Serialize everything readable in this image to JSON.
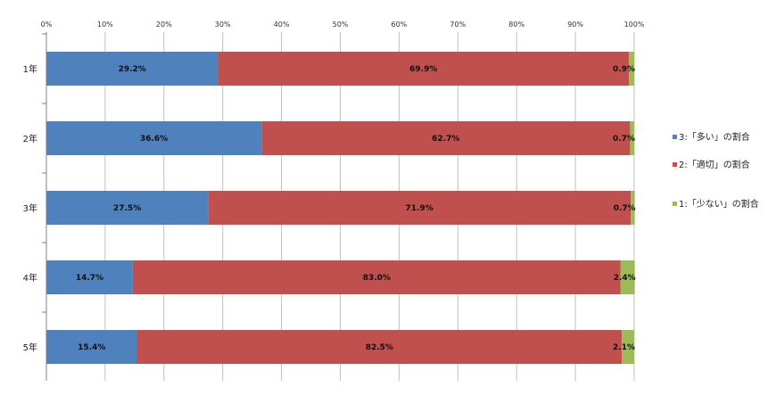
{
  "chart_data": {
    "type": "bar",
    "orientation": "horizontal",
    "stacked": true,
    "categories": [
      "1年",
      "2年",
      "3年",
      "4年",
      "5年"
    ],
    "series": [
      {
        "name": "3:「多い」の割合",
        "color": "#4f81bd",
        "values": [
          29.2,
          36.6,
          27.5,
          14.7,
          15.4
        ],
        "labels": [
          "29.2%",
          "36.6%",
          "27.5%",
          "14.7%",
          "15.4%"
        ]
      },
      {
        "name": "2:「適切」の割合",
        "color": "#c0504d",
        "values": [
          69.9,
          62.7,
          71.9,
          83.0,
          82.5
        ],
        "labels": [
          "69.9%",
          "62.7%",
          "71.9%",
          "83.0%",
          "82.5%"
        ]
      },
      {
        "name": "1:「少ない」の割合",
        "color": "#9bbb59",
        "values": [
          0.9,
          0.7,
          0.7,
          2.4,
          2.1
        ],
        "labels": [
          "0.9%",
          "0.7%",
          "0.7%",
          "2.4%",
          "2.1%"
        ]
      }
    ],
    "xlim": [
      0,
      100
    ],
    "xticks": [
      "0%",
      "10%",
      "20%",
      "30%",
      "40%",
      "50%",
      "60%",
      "70%",
      "80%",
      "90%",
      "100%"
    ],
    "grid": true,
    "legend": "right"
  }
}
